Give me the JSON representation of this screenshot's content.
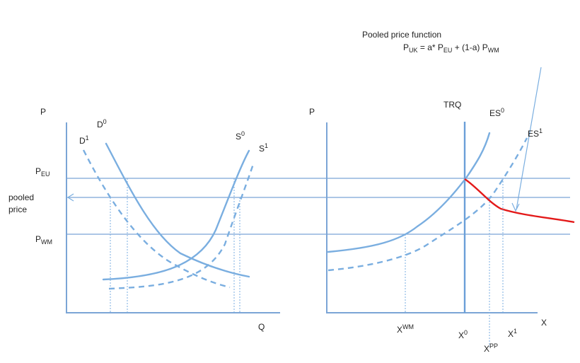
{
  "annotation": {
    "title": "Pooled price function",
    "formula_lhs": "P",
    "formula_lhs_sub": "UK",
    "formula_mid1": " = a* P",
    "formula_sub_eu": "EU",
    "formula_mid2": " + (1-a) P",
    "formula_sub_wm": "WM"
  },
  "left_panel": {
    "y_axis_label": "P",
    "x_axis_label": "Q",
    "p_eu_label": "P",
    "p_eu_sub": "EU",
    "pooled_price_line1": "pooled",
    "pooled_price_line2": "price",
    "p_wm_label": "P",
    "p_wm_sub": "WM",
    "d0_label": "D",
    "d0_sup": "0",
    "d1_label": "D",
    "d1_sup": "1",
    "s0_label": "S",
    "s0_sup": "0",
    "s1_label": "S",
    "s1_sup": "1"
  },
  "right_panel": {
    "y_axis_label": "P",
    "x_axis_label": "X",
    "trq_label": "TRQ",
    "es0_label": "ES",
    "es0_sup": "0",
    "es1_label": "ES",
    "es1_sup": "1",
    "xwm_label": "X",
    "xwm_sup": "WM",
    "x0_label": "X",
    "x0_sup": "0",
    "xpp_label": "X",
    "xpp_sup": "PP",
    "x1_label": "X",
    "x1_sup": "1"
  },
  "colors": {
    "curve": "#7aaee0",
    "axis": "#7ba5d6",
    "pooled_curve": "#e31919",
    "text": "#222222"
  }
}
